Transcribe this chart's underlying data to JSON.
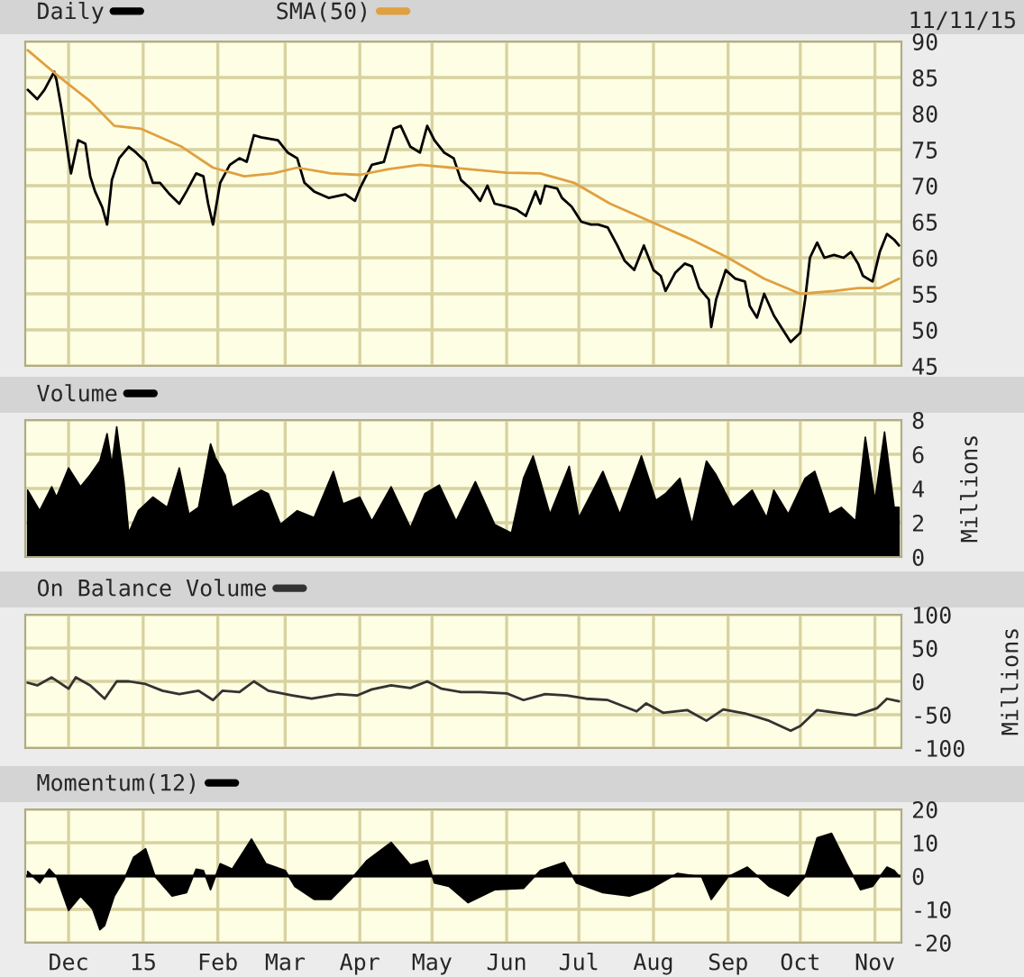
{
  "chart_data": [
    {
      "type": "line",
      "legend": "top left",
      "grid": true,
      "tick_labels": "y",
      "annotations": [
        "11/11/15"
      ],
      "xlim": [
        "2014-11-13",
        "2015-11-12"
      ],
      "xticks": [
        {
          "value": "2014-12-01",
          "label": null
        },
        {
          "value": "2015-01-01",
          "label": null
        },
        {
          "value": "2015-02-01",
          "label": null
        },
        {
          "value": "2015-03-01",
          "label": null
        },
        {
          "value": "2015-04-01",
          "label": null
        },
        {
          "value": "2015-05-01",
          "label": null
        },
        {
          "value": "2015-06-01",
          "label": null
        },
        {
          "value": "2015-07-01",
          "label": null
        },
        {
          "value": "2015-08-01",
          "label": null
        },
        {
          "value": "2015-09-01",
          "label": null
        },
        {
          "value": "2015-10-01",
          "label": null
        },
        {
          "value": "2015-11-01",
          "label": null
        }
      ],
      "ylim": [
        45,
        90
      ],
      "yticks": [
        45,
        50,
        55,
        60,
        65,
        70,
        75,
        80,
        85,
        90
      ],
      "series": [
        {
          "name": "Daily",
          "color": "#000000",
          "x": [
            "2014-11-14",
            "2014-11-18",
            "2014-11-21",
            "2014-11-25",
            "2014-11-26",
            "2014-11-28",
            "2014-12-01",
            "2014-12-02",
            "2014-12-05",
            "2014-12-08",
            "2014-12-10",
            "2014-12-12",
            "2014-12-15",
            "2014-12-17",
            "2014-12-19",
            "2014-12-22",
            "2014-12-26",
            "2014-12-29",
            "2015-01-02",
            "2015-01-05",
            "2015-01-08",
            "2015-01-12",
            "2015-01-16",
            "2015-01-19",
            "2015-01-23",
            "2015-01-26",
            "2015-01-28",
            "2015-01-30",
            "2015-02-02",
            "2015-02-06",
            "2015-02-10",
            "2015-02-13",
            "2015-02-16",
            "2015-02-19",
            "2015-02-26",
            "2015-03-02",
            "2015-03-06",
            "2015-03-09",
            "2015-03-13",
            "2015-03-19",
            "2015-03-26",
            "2015-03-30",
            "2015-04-01",
            "2015-04-06",
            "2015-04-11",
            "2015-04-15",
            "2015-04-18",
            "2015-04-22",
            "2015-04-26",
            "2015-04-29",
            "2015-05-02",
            "2015-05-06",
            "2015-05-10",
            "2015-05-13",
            "2015-05-17",
            "2015-05-21",
            "2015-05-24",
            "2015-05-27",
            "2015-06-01",
            "2015-06-05",
            "2015-06-09",
            "2015-06-13",
            "2015-06-15",
            "2015-06-17",
            "2015-06-22",
            "2015-06-24",
            "2015-06-28",
            "2015-07-02",
            "2015-07-06",
            "2015-07-09",
            "2015-07-13",
            "2015-07-17",
            "2015-07-20",
            "2015-07-24",
            "2015-07-28",
            "2015-08-01",
            "2015-08-04",
            "2015-08-06",
            "2015-08-10",
            "2015-08-14",
            "2015-08-17",
            "2015-08-20",
            "2015-08-24",
            "2015-08-25",
            "2015-08-27",
            "2015-08-31",
            "2015-09-04",
            "2015-09-08",
            "2015-09-10",
            "2015-09-13",
            "2015-09-16",
            "2015-09-20",
            "2015-09-23",
            "2015-09-27",
            "2015-10-01",
            "2015-10-03",
            "2015-10-05",
            "2015-10-08",
            "2015-10-11",
            "2015-10-15",
            "2015-10-19",
            "2015-10-22",
            "2015-10-25",
            "2015-10-27",
            "2015-10-31",
            "2015-11-03",
            "2015-11-06",
            "2015-11-09",
            "2015-11-11"
          ],
          "values": [
            83.3,
            82,
            83.3,
            85.8,
            84.6,
            80.8,
            73.8,
            71.7,
            76.3,
            75.8,
            71.3,
            69.2,
            67,
            64.6,
            70.8,
            73.8,
            75.4,
            74.6,
            73.3,
            70.4,
            70.4,
            68.8,
            67.5,
            69.2,
            71.7,
            71.3,
            67.5,
            64.6,
            70.4,
            72.9,
            73.8,
            73.3,
            77,
            76.7,
            76.3,
            74.6,
            73.8,
            70.4,
            69.2,
            68.3,
            68.8,
            67.9,
            69.6,
            72.9,
            73.3,
            77.9,
            78.3,
            75.4,
            74.6,
            78.3,
            76.3,
            74.6,
            73.8,
            70.8,
            69.6,
            67.9,
            70,
            67.5,
            67.1,
            66.7,
            65.8,
            69.2,
            67.5,
            70,
            69.6,
            68.3,
            67.1,
            65,
            64.6,
            64.6,
            64.2,
            61.7,
            59.6,
            58.3,
            61.7,
            58.3,
            57.5,
            55.4,
            57.9,
            59.2,
            58.8,
            55.8,
            54.2,
            50.4,
            54.2,
            58.3,
            57.1,
            56.7,
            53.3,
            51.7,
            55,
            52,
            50.4,
            48.3,
            49.6,
            54.2,
            60,
            62.1,
            60,
            60.4,
            60,
            60.8,
            59.2,
            57.5,
            56.7,
            60.8,
            63.3,
            62.5,
            61.7
          ]
        },
        {
          "name": "SMA(50)",
          "color": "#e0a040",
          "x": [
            "2014-11-14",
            "2014-11-26",
            "2014-12-10",
            "2014-12-20",
            "2014-12-31",
            "2015-01-17",
            "2015-01-30",
            "2015-02-12",
            "2015-02-24",
            "2015-03-06",
            "2015-03-20",
            "2015-04-01",
            "2015-04-13",
            "2015-04-26",
            "2015-05-09",
            "2015-05-22",
            "2015-06-01",
            "2015-06-15",
            "2015-06-29",
            "2015-07-14",
            "2015-07-31",
            "2015-08-17",
            "2015-09-01",
            "2015-09-16",
            "2015-10-01",
            "2015-10-15",
            "2015-10-25",
            "2015-11-03",
            "2015-11-11"
          ],
          "values": [
            88.8,
            85.4,
            81.7,
            78.3,
            77.9,
            75.4,
            72.5,
            71.3,
            71.7,
            72.5,
            71.7,
            71.5,
            72.3,
            72.9,
            72.5,
            72.1,
            71.8,
            71.7,
            70.4,
            67.5,
            65,
            62.5,
            60,
            57.1,
            55,
            55.4,
            55.8,
            55.8,
            57.1
          ]
        }
      ]
    },
    {
      "type": "area",
      "legend": "top left",
      "grid": true,
      "tick_labels": "y",
      "ylabel": "Millions",
      "xlim": [
        "2014-11-13",
        "2015-11-12"
      ],
      "xticks": [
        {
          "value": "2014-12-01",
          "label": null
        },
        {
          "value": "2015-01-01",
          "label": null
        },
        {
          "value": "2015-02-01",
          "label": null
        },
        {
          "value": "2015-03-01",
          "label": null
        },
        {
          "value": "2015-04-01",
          "label": null
        },
        {
          "value": "2015-05-01",
          "label": null
        },
        {
          "value": "2015-06-01",
          "label": null
        },
        {
          "value": "2015-07-01",
          "label": null
        },
        {
          "value": "2015-08-01",
          "label": null
        },
        {
          "value": "2015-09-01",
          "label": null
        },
        {
          "value": "2015-10-01",
          "label": null
        },
        {
          "value": "2015-11-01",
          "label": null
        }
      ],
      "ylim": [
        0,
        8
      ],
      "yticks": [
        0,
        2,
        4,
        6,
        8
      ],
      "series": [
        {
          "name": "Volume",
          "color": "#000000",
          "x": [
            "2014-11-14",
            "2014-11-19",
            "2014-11-24",
            "2014-11-26",
            "2014-12-01",
            "2014-12-06",
            "2014-12-10",
            "2014-12-14",
            "2014-12-17",
            "2014-12-19",
            "2014-12-21",
            "2014-12-24",
            "2014-12-26",
            "2014-12-30",
            "2015-01-05",
            "2015-01-11",
            "2015-01-16",
            "2015-01-20",
            "2015-01-24",
            "2015-01-29",
            "2015-01-31",
            "2015-02-04",
            "2015-02-07",
            "2015-02-14",
            "2015-02-19",
            "2015-02-22",
            "2015-02-27",
            "2015-03-06",
            "2015-03-13",
            "2015-03-21",
            "2015-03-25",
            "2015-04-01",
            "2015-04-06",
            "2015-04-14",
            "2015-04-22",
            "2015-04-28",
            "2015-05-04",
            "2015-05-11",
            "2015-05-19",
            "2015-05-27",
            "2015-06-03",
            "2015-06-08",
            "2015-06-12",
            "2015-06-19",
            "2015-06-27",
            "2015-07-01",
            "2015-07-11",
            "2015-07-18",
            "2015-07-27",
            "2015-08-02",
            "2015-08-06",
            "2015-08-12",
            "2015-08-17",
            "2015-08-23",
            "2015-08-27",
            "2015-09-03",
            "2015-09-11",
            "2015-09-17",
            "2015-09-20",
            "2015-09-26",
            "2015-10-03",
            "2015-10-07",
            "2015-10-13",
            "2015-10-18",
            "2015-10-24",
            "2015-10-28",
            "2015-11-01",
            "2015-11-05",
            "2015-11-09",
            "2015-11-11"
          ],
          "values": [
            3.9,
            2.7,
            4.1,
            3.5,
            5.2,
            4.1,
            4.8,
            5.6,
            7.2,
            5.4,
            7.6,
            4.4,
            1.4,
            2.7,
            3.5,
            2.9,
            5.2,
            2.5,
            2.9,
            6.6,
            5.8,
            4.8,
            2.9,
            3.5,
            3.9,
            3.7,
            1.9,
            2.7,
            2.3,
            5,
            3.1,
            3.5,
            2.1,
            4.1,
            1.7,
            3.7,
            4.2,
            2.1,
            4.4,
            1.9,
            1.4,
            4.6,
            5.9,
            2.5,
            5.3,
            2.3,
            5,
            2.5,
            5.9,
            3.3,
            3.7,
            4.6,
            1.9,
            5.6,
            4.8,
            2.9,
            3.9,
            2.3,
            3.9,
            2.5,
            4.6,
            5,
            2.5,
            2.9,
            2.1,
            7,
            3.3,
            7.3,
            2.9,
            2.9
          ]
        }
      ]
    },
    {
      "type": "line",
      "legend": "top left",
      "grid": true,
      "tick_labels": "y",
      "ylabel": "Millions",
      "xlim": [
        "2014-11-13",
        "2015-11-12"
      ],
      "xticks": [
        {
          "value": "2014-12-01",
          "label": null
        },
        {
          "value": "2015-01-01",
          "label": null
        },
        {
          "value": "2015-02-01",
          "label": null
        },
        {
          "value": "2015-03-01",
          "label": null
        },
        {
          "value": "2015-04-01",
          "label": null
        },
        {
          "value": "2015-05-01",
          "label": null
        },
        {
          "value": "2015-06-01",
          "label": null
        },
        {
          "value": "2015-07-01",
          "label": null
        },
        {
          "value": "2015-08-01",
          "label": null
        },
        {
          "value": "2015-09-01",
          "label": null
        },
        {
          "value": "2015-10-01",
          "label": null
        },
        {
          "value": "2015-11-01",
          "label": null
        }
      ],
      "ylim": [
        -100,
        100
      ],
      "yticks": [
        -100,
        -50,
        0,
        50,
        100
      ],
      "series": [
        {
          "name": "On Balance Volume",
          "color": "#333333",
          "x": [
            "2014-11-14",
            "2014-11-18",
            "2014-11-24",
            "2014-12-01",
            "2014-12-04",
            "2014-12-10",
            "2014-12-16",
            "2014-12-21",
            "2014-12-26",
            "2015-01-02",
            "2015-01-09",
            "2015-01-16",
            "2015-01-24",
            "2015-01-30",
            "2015-02-03",
            "2015-02-10",
            "2015-02-16",
            "2015-02-22",
            "2015-03-04",
            "2015-03-12",
            "2015-03-23",
            "2015-03-31",
            "2015-04-06",
            "2015-04-14",
            "2015-04-22",
            "2015-04-29",
            "2015-05-05",
            "2015-05-13",
            "2015-05-21",
            "2015-06-01",
            "2015-06-08",
            "2015-06-17",
            "2015-06-26",
            "2015-07-04",
            "2015-07-13",
            "2015-07-25",
            "2015-07-29",
            "2015-08-05",
            "2015-08-15",
            "2015-08-23",
            "2015-08-30",
            "2015-09-08",
            "2015-09-18",
            "2015-09-27",
            "2015-10-01",
            "2015-10-08",
            "2015-10-16",
            "2015-10-24",
            "2015-11-02",
            "2015-11-06",
            "2015-11-11"
          ],
          "values": [
            -2,
            -6,
            6,
            -11,
            6,
            -6,
            -26,
            0,
            0,
            -4,
            -14,
            -19,
            -14,
            -28,
            -14,
            -16,
            0,
            -14,
            -21,
            -26,
            -19,
            -21,
            -12,
            -6,
            -10,
            0,
            -11,
            -16,
            -16,
            -18,
            -28,
            -19,
            -21,
            -26,
            -28,
            -45,
            -33,
            -47,
            -43,
            -59,
            -42,
            -48,
            -59,
            -74,
            -67,
            -43,
            -47,
            -51,
            -40,
            -26,
            -30
          ]
        }
      ]
    },
    {
      "type": "area",
      "legend": "top left",
      "grid": true,
      "xlim": [
        "2014-11-13",
        "2015-11-12"
      ],
      "xticks": [
        {
          "value": "2014-12-01",
          "label": "Dec"
        },
        {
          "value": "2015-01-01",
          "label": "15"
        },
        {
          "value": "2015-02-01",
          "label": "Feb"
        },
        {
          "value": "2015-03-01",
          "label": "Mar"
        },
        {
          "value": "2015-04-01",
          "label": "Apr"
        },
        {
          "value": "2015-05-01",
          "label": "May"
        },
        {
          "value": "2015-06-01",
          "label": "Jun"
        },
        {
          "value": "2015-07-01",
          "label": "Jul"
        },
        {
          "value": "2015-08-01",
          "label": "Aug"
        },
        {
          "value": "2015-09-01",
          "label": "Sep"
        },
        {
          "value": "2015-10-01",
          "label": "Oct"
        },
        {
          "value": "2015-11-01",
          "label": "Nov"
        }
      ],
      "ylim": [
        -20,
        20
      ],
      "yticks": [
        -20,
        -10,
        0,
        10,
        20
      ],
      "series": [
        {
          "name": "Momentum(12)",
          "color": "#000000",
          "x": [
            "2014-11-14",
            "2014-11-19",
            "2014-11-23",
            "2014-11-26",
            "2014-12-01",
            "2014-12-06",
            "2014-12-11",
            "2014-12-14",
            "2014-12-16",
            "2014-12-20",
            "2014-12-24",
            "2014-12-28",
            "2015-01-02",
            "2015-01-06",
            "2015-01-13",
            "2015-01-19",
            "2015-01-23",
            "2015-01-26",
            "2015-01-29",
            "2015-02-02",
            "2015-02-07",
            "2015-02-15",
            "2015-02-21",
            "2015-03-01",
            "2015-03-05",
            "2015-03-13",
            "2015-03-20",
            "2015-03-28",
            "2015-04-04",
            "2015-04-14",
            "2015-04-22",
            "2015-04-29",
            "2015-05-02",
            "2015-05-08",
            "2015-05-16",
            "2015-05-27",
            "2015-06-08",
            "2015-06-15",
            "2015-06-25",
            "2015-06-30",
            "2015-07-11",
            "2015-07-22",
            "2015-07-30",
            "2015-08-11",
            "2015-08-21",
            "2015-08-25",
            "2015-09-01",
            "2015-09-09",
            "2015-09-18",
            "2015-09-26",
            "2015-10-03",
            "2015-10-08",
            "2015-10-14",
            "2015-10-21",
            "2015-10-26",
            "2015-10-31",
            "2015-11-06",
            "2015-11-09",
            "2015-11-11"
          ],
          "values": [
            1.4,
            -2.1,
            2.1,
            -0.2,
            -10.3,
            -6,
            -9.9,
            -16.1,
            -14.8,
            -6,
            -1.2,
            5.6,
            8.2,
            -0.2,
            -6,
            -5,
            2.1,
            1.7,
            -4.1,
            3.7,
            2.1,
            11.1,
            3.7,
            1.7,
            -3.1,
            -7,
            -7,
            -1.2,
            4.7,
            10.1,
            3.3,
            4.7,
            -2.1,
            -3.1,
            -8,
            -4.1,
            -3.7,
            1.7,
            4.1,
            -2.1,
            -5,
            -6,
            -4.1,
            0.8,
            -0.2,
            -7,
            -0.2,
            2.7,
            -3.1,
            -6,
            -0.2,
            11.5,
            12.8,
            2.7,
            -4.1,
            -3.1,
            2.7,
            1.7,
            0
          ]
        }
      ]
    }
  ]
}
